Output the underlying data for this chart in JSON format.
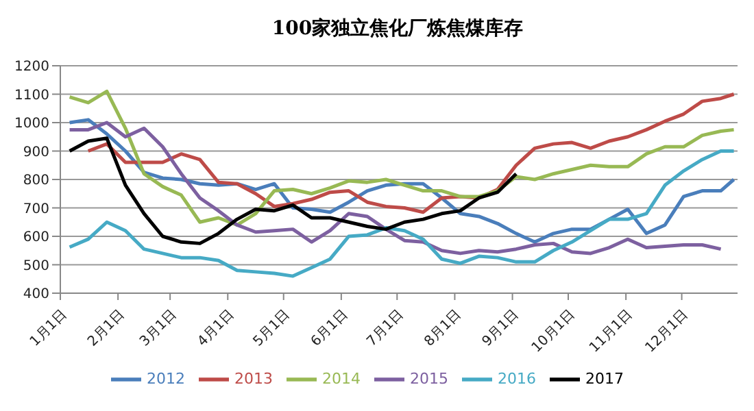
{
  "chart_data": {
    "type": "line",
    "title": "100家独立焦化厂炼焦煤库存",
    "x": [
      "--01-06",
      "--01-16",
      "--01-26",
      "--02-05",
      "--02-15",
      "--02-25",
      "--03-07",
      "--03-17",
      "--03-27",
      "--04-06",
      "--04-16",
      "--04-26",
      "--05-06",
      "--05-16",
      "--05-26",
      "--06-05",
      "--06-15",
      "--06-25",
      "--07-05",
      "--07-15",
      "--07-25",
      "--08-04",
      "--08-14",
      "--08-24",
      "--09-03",
      "--09-13",
      "--09-23",
      "--10-03",
      "--10-13",
      "--10-23",
      "--11-02",
      "--11-12",
      "--11-22",
      "--12-02",
      "--12-12",
      "--12-22",
      "--12-29"
    ],
    "series": [
      {
        "name": "2012",
        "color": "#4a7ebb",
        "values": [
          1000,
          1010,
          960,
          900,
          825,
          805,
          800,
          785,
          780,
          785,
          765,
          785,
          700,
          695,
          685,
          720,
          760,
          780,
          785,
          785,
          735,
          680,
          670,
          645,
          610,
          580,
          610,
          625,
          625,
          660,
          695,
          610,
          640,
          740,
          760,
          760,
          800
        ]
      },
      {
        "name": "2013",
        "color": "#be4b48",
        "values": [
          null,
          900,
          925,
          860,
          860,
          860,
          890,
          870,
          790,
          785,
          750,
          705,
          715,
          730,
          755,
          760,
          720,
          705,
          700,
          685,
          735,
          740,
          735,
          765,
          850,
          910,
          925,
          930,
          910,
          935,
          950,
          975,
          1005,
          1030,
          1075,
          1085,
          1100
        ]
      },
      {
        "name": "2014",
        "color": "#98b954",
        "values": [
          1090,
          1070,
          1110,
          980,
          820,
          775,
          745,
          650,
          665,
          640,
          680,
          760,
          765,
          750,
          770,
          795,
          790,
          800,
          780,
          760,
          760,
          740,
          740,
          760,
          810,
          800,
          820,
          835,
          850,
          845,
          845,
          890,
          915,
          915,
          955,
          970,
          975
        ]
      },
      {
        "name": "2015",
        "color": "#7d60a0",
        "values": [
          975,
          975,
          1000,
          950,
          980,
          915,
          820,
          735,
          690,
          640,
          615,
          620,
          625,
          580,
          620,
          680,
          670,
          625,
          585,
          580,
          550,
          540,
          550,
          545,
          555,
          570,
          575,
          545,
          540,
          560,
          590,
          560,
          565,
          570,
          570,
          555,
          null
        ]
      },
      {
        "name": "2016",
        "color": "#46aac5",
        "values": [
          562,
          590,
          650,
          620,
          555,
          540,
          525,
          525,
          515,
          480,
          475,
          470,
          460,
          490,
          520,
          600,
          605,
          630,
          620,
          590,
          520,
          505,
          530,
          525,
          510,
          510,
          550,
          580,
          620,
          660,
          660,
          680,
          780,
          830,
          870,
          900,
          900
        ]
      },
      {
        "name": "2017",
        "color": "#000000",
        "values": [
          900,
          935,
          945,
          780,
          680,
          600,
          580,
          575,
          610,
          660,
          695,
          690,
          710,
          665,
          665,
          650,
          635,
          625,
          650,
          660,
          680,
          690,
          735,
          755,
          820,
          null,
          null,
          null,
          null,
          null,
          null,
          null,
          null,
          null,
          null,
          null,
          null
        ]
      }
    ],
    "xlim": [
      "--01-01",
      "--12-31"
    ],
    "xticks": [
      {
        "value": "--01-01",
        "label": "1月1日"
      },
      {
        "value": "--02-01",
        "label": "2月1日"
      },
      {
        "value": "--03-01",
        "label": "3月1日"
      },
      {
        "value": "--04-01",
        "label": "4月1日"
      },
      {
        "value": "--05-01",
        "label": "5月1日"
      },
      {
        "value": "--06-01",
        "label": "6月1日"
      },
      {
        "value": "--07-01",
        "label": "7月1日"
      },
      {
        "value": "--08-01",
        "label": "8月1日"
      },
      {
        "value": "--09-01",
        "label": "9月1日"
      },
      {
        "value": "--10-01",
        "label": "10月1日"
      },
      {
        "value": "--11-01",
        "label": "11月1日"
      },
      {
        "value": "--12-01",
        "label": "12月1日"
      }
    ],
    "ylim": [
      400,
      1200
    ],
    "yticks": [
      400,
      500,
      600,
      700,
      800,
      900,
      1000,
      1100,
      1200
    ],
    "grid": "y",
    "legend": "bottom",
    "marker": "none",
    "line_style": "solid"
  }
}
